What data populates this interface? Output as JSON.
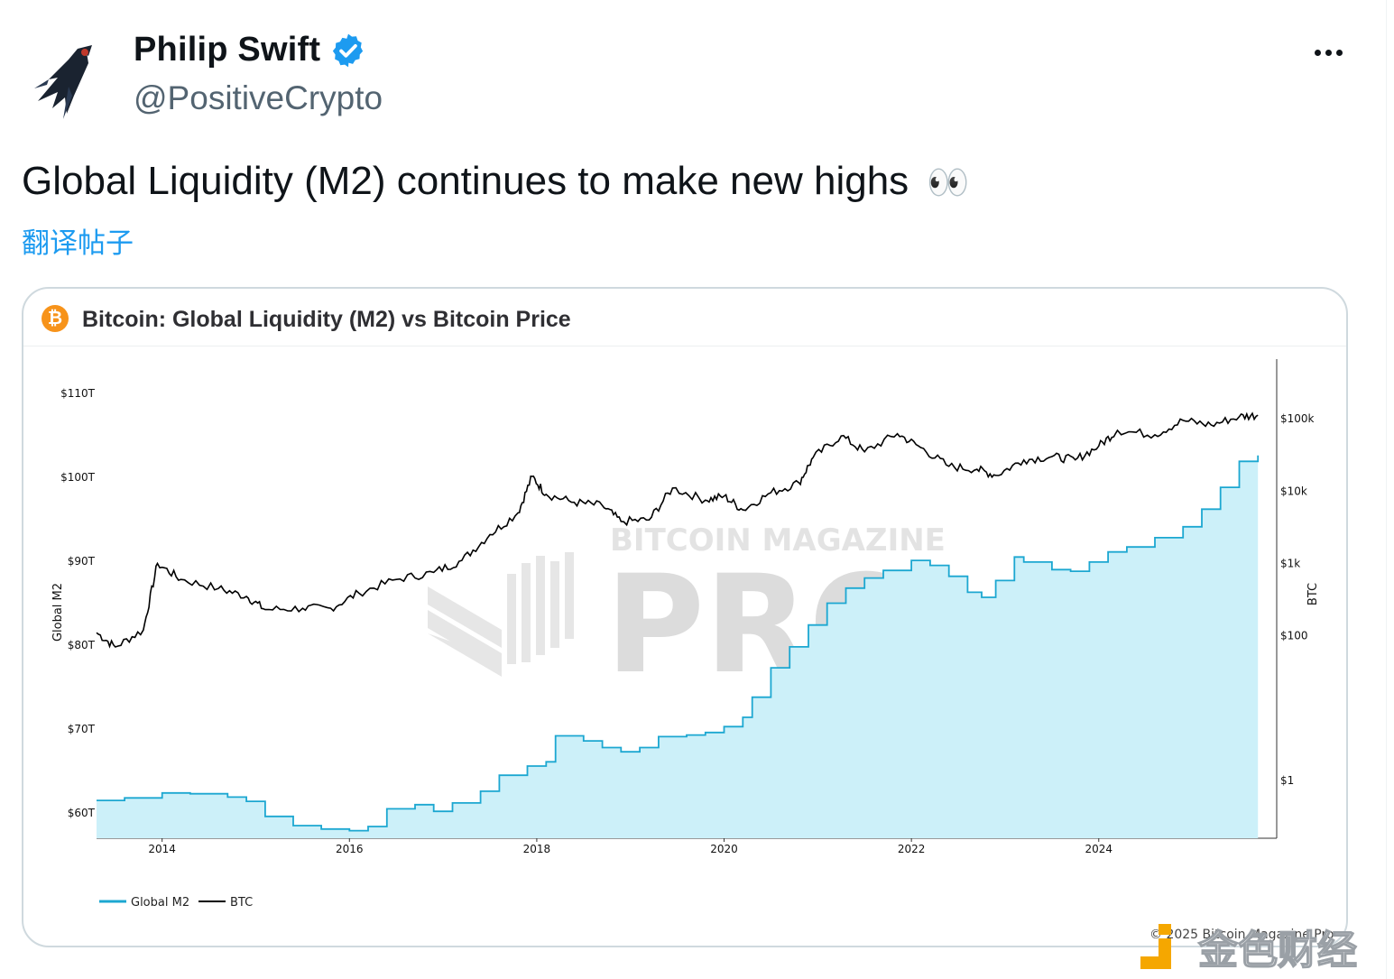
{
  "tweet": {
    "author": {
      "display_name": "Philip Swift",
      "handle": "@PositiveCrypto",
      "verified": true,
      "avatar_icon": "swallow-bird-icon"
    },
    "text": "Global Liquidity (M2) continues to make new highs",
    "text_emoji": "👀",
    "translate_label": "翻译帖子"
  },
  "card": {
    "title": "Bitcoin: Global Liquidity (M2) vs Bitcoin Price",
    "watermark_top": "BITCOIN MAGAZINE",
    "watermark_main": "PRO",
    "copyright": "© 2025 Bitcoin Magazine Pro",
    "overlay_brand": "金色财经"
  },
  "colors": {
    "m2_line": "#1ca7d1",
    "m2_fill": "#ccf0f9",
    "btc_line": "#000000",
    "verified_blue": "#1d9bf0",
    "bitcoin_orange": "#f7931a"
  },
  "chart_data": {
    "type": "line",
    "x_ticks": [
      "2014",
      "2016",
      "2018",
      "2020",
      "2022",
      "2024"
    ],
    "left_axis": {
      "label": "Global M2",
      "ticks": [
        "$60T",
        "$70T",
        "$80T",
        "$90T",
        "$100T",
        "$110T"
      ],
      "range": [
        57,
        113
      ]
    },
    "right_axis": {
      "label": "BTC",
      "scale": "log",
      "ticks": [
        "$1",
        "$100",
        "$1k",
        "$10k",
        "$100k"
      ],
      "range_log10": [
        -0.8,
        5.7
      ]
    },
    "legend": [
      "Global M2",
      "BTC"
    ],
    "series": [
      {
        "name": "Global M2",
        "unit": "trillion USD",
        "points": [
          [
            2013.3,
            61.5
          ],
          [
            2013.6,
            61.8
          ],
          [
            2014.0,
            62.4
          ],
          [
            2014.3,
            62.3
          ],
          [
            2014.7,
            61.9
          ],
          [
            2014.9,
            61.4
          ],
          [
            2015.1,
            59.6
          ],
          [
            2015.4,
            58.5
          ],
          [
            2015.7,
            58.1
          ],
          [
            2016.0,
            57.9
          ],
          [
            2016.2,
            58.4
          ],
          [
            2016.4,
            60.5
          ],
          [
            2016.7,
            61.0
          ],
          [
            2016.9,
            60.2
          ],
          [
            2017.1,
            61.2
          ],
          [
            2017.4,
            62.6
          ],
          [
            2017.6,
            64.5
          ],
          [
            2017.9,
            65.6
          ],
          [
            2018.1,
            66.1
          ],
          [
            2018.2,
            69.2
          ],
          [
            2018.5,
            68.6
          ],
          [
            2018.7,
            67.8
          ],
          [
            2018.9,
            67.3
          ],
          [
            2019.1,
            67.8
          ],
          [
            2019.3,
            69.1
          ],
          [
            2019.6,
            69.3
          ],
          [
            2019.8,
            69.6
          ],
          [
            2020.0,
            70.3
          ],
          [
            2020.2,
            71.4
          ],
          [
            2020.3,
            73.8
          ],
          [
            2020.5,
            77.3
          ],
          [
            2020.7,
            79.8
          ],
          [
            2020.9,
            82.4
          ],
          [
            2021.1,
            85.0
          ],
          [
            2021.3,
            86.8
          ],
          [
            2021.5,
            88.0
          ],
          [
            2021.7,
            88.9
          ],
          [
            2022.0,
            90.1
          ],
          [
            2022.2,
            89.5
          ],
          [
            2022.4,
            88.2
          ],
          [
            2022.6,
            86.3
          ],
          [
            2022.75,
            85.7
          ],
          [
            2022.9,
            87.7
          ],
          [
            2023.1,
            90.5
          ],
          [
            2023.2,
            89.9
          ],
          [
            2023.5,
            89.0
          ],
          [
            2023.7,
            88.8
          ],
          [
            2023.9,
            89.9
          ],
          [
            2024.1,
            91.1
          ],
          [
            2024.3,
            91.7
          ],
          [
            2024.6,
            92.8
          ],
          [
            2024.9,
            94.1
          ],
          [
            2025.1,
            96.2
          ],
          [
            2025.3,
            98.8
          ],
          [
            2025.5,
            101.9
          ],
          [
            2025.7,
            102.6
          ]
        ]
      },
      {
        "name": "BTC",
        "unit": "USD",
        "scale": "log",
        "points": [
          [
            2013.3,
            110
          ],
          [
            2013.5,
            70
          ],
          [
            2013.8,
            120
          ],
          [
            2013.95,
            1000
          ],
          [
            2014.2,
            600
          ],
          [
            2014.6,
            450
          ],
          [
            2014.9,
            350
          ],
          [
            2015.1,
            230
          ],
          [
            2015.5,
            240
          ],
          [
            2015.8,
            240
          ],
          [
            2016.1,
            390
          ],
          [
            2016.5,
            600
          ],
          [
            2016.9,
            750
          ],
          [
            2017.2,
            1100
          ],
          [
            2017.5,
            2500
          ],
          [
            2017.8,
            5000
          ],
          [
            2017.95,
            16000
          ],
          [
            2018.1,
            9000
          ],
          [
            2018.4,
            7000
          ],
          [
            2018.7,
            6300
          ],
          [
            2018.9,
            3800
          ],
          [
            2019.2,
            4000
          ],
          [
            2019.45,
            11000
          ],
          [
            2019.8,
            7500
          ],
          [
            2020.0,
            8500
          ],
          [
            2020.2,
            5500
          ],
          [
            2020.5,
            9500
          ],
          [
            2020.8,
            13000
          ],
          [
            2020.95,
            29000
          ],
          [
            2021.25,
            58000
          ],
          [
            2021.5,
            35000
          ],
          [
            2021.85,
            62000
          ],
          [
            2022.1,
            40000
          ],
          [
            2022.4,
            22000
          ],
          [
            2022.7,
            20000
          ],
          [
            2022.9,
            16500
          ],
          [
            2023.2,
            27000
          ],
          [
            2023.5,
            30000
          ],
          [
            2023.75,
            27000
          ],
          [
            2024.0,
            42000
          ],
          [
            2024.2,
            69000
          ],
          [
            2024.6,
            60000
          ],
          [
            2024.9,
            95000
          ],
          [
            2025.2,
            82000
          ],
          [
            2025.5,
            107000
          ],
          [
            2025.7,
            112000
          ]
        ]
      }
    ]
  }
}
